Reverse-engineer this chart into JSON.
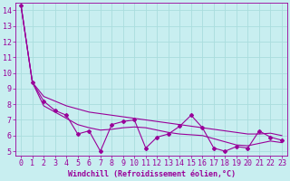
{
  "xlabel": "Windchill (Refroidissement éolien,°C)",
  "background_color": "#c8eef0",
  "line_color": "#990099",
  "grid_color": "#aadddd",
  "x_data": [
    0,
    1,
    2,
    3,
    4,
    5,
    6,
    7,
    8,
    9,
    10,
    11,
    12,
    13,
    14,
    15,
    16,
    17,
    18,
    19,
    20,
    21,
    22,
    23
  ],
  "y_main": [
    14.3,
    9.4,
    8.2,
    7.6,
    7.3,
    6.1,
    6.3,
    5.0,
    6.7,
    6.9,
    7.0,
    5.2,
    5.9,
    6.1,
    6.6,
    7.3,
    6.5,
    5.2,
    5.0,
    5.3,
    5.2,
    6.3,
    5.9,
    5.7
  ],
  "y_smooth_upper": [
    14.3,
    9.4,
    8.5,
    8.2,
    7.9,
    7.7,
    7.5,
    7.4,
    7.3,
    7.2,
    7.1,
    7.0,
    6.9,
    6.8,
    6.7,
    6.6,
    6.5,
    6.4,
    6.3,
    6.2,
    6.1,
    6.1,
    6.15,
    6.0
  ],
  "y_smooth_lower": [
    14.3,
    9.4,
    7.9,
    7.5,
    7.1,
    6.7,
    6.5,
    6.35,
    6.4,
    6.5,
    6.55,
    6.5,
    6.35,
    6.2,
    6.1,
    6.05,
    6.0,
    5.8,
    5.6,
    5.4,
    5.35,
    5.5,
    5.65,
    5.55
  ],
  "ylim_min": 4.7,
  "ylim_max": 14.5,
  "xlim_min": -0.5,
  "xlim_max": 23.5,
  "yticks": [
    5,
    6,
    7,
    8,
    9,
    10,
    11,
    12,
    13,
    14
  ],
  "xticks": [
    0,
    1,
    2,
    3,
    4,
    5,
    6,
    7,
    8,
    9,
    10,
    11,
    12,
    13,
    14,
    15,
    16,
    17,
    18,
    19,
    20,
    21,
    22,
    23
  ],
  "tick_fontsize": 6,
  "xlabel_fontsize": 6
}
